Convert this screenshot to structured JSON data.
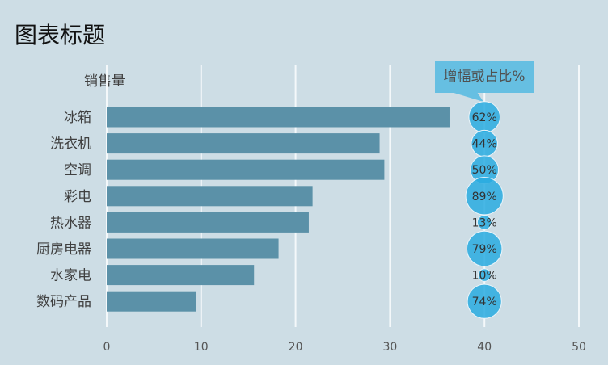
{
  "chart_data": {
    "type": "bar",
    "title": "图表标题",
    "ylabel": "销售量",
    "bubble_label": "增幅或占比%",
    "categories": [
      "冰箱",
      "洗衣机",
      "空调",
      "彩电",
      "热水器",
      "厨房电器",
      "水家电",
      "数码产品"
    ],
    "values": [
      36.3,
      28.9,
      29.4,
      21.8,
      21.4,
      18.2,
      15.6,
      9.5
    ],
    "percent_values": [
      62,
      44,
      50,
      89,
      13,
      79,
      10,
      74
    ],
    "percent_labels": [
      "62%",
      "44%",
      "50%",
      "89%",
      "13%",
      "79%",
      "10%",
      "74%"
    ],
    "bubble_x": 40,
    "xlim": [
      0,
      50
    ],
    "xticks": [
      0,
      10,
      20,
      30,
      40,
      50
    ],
    "grid": true,
    "colors": {
      "bar": "#5b91a8",
      "bubble": "#29abe0",
      "background": "#cddde5",
      "callout": "#66bfe2"
    }
  }
}
